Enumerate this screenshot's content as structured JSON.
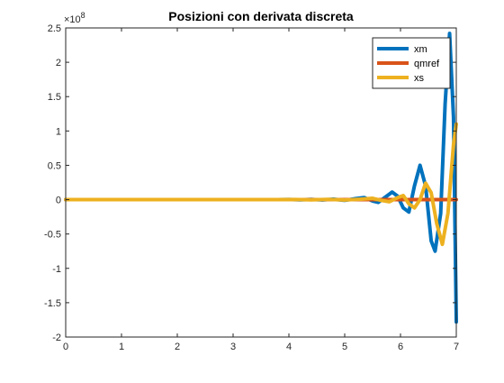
{
  "chart_data": {
    "type": "line",
    "title": "Posizioni con derivata discreta",
    "xlabel": "",
    "ylabel": "",
    "xlim": [
      0,
      7
    ],
    "ylim": [
      -2.0,
      2.5
    ],
    "y_exponent_label": "×10",
    "y_exponent_power": "8",
    "x_ticks": [
      0,
      1,
      2,
      3,
      4,
      5,
      6,
      7
    ],
    "x_tick_labels": [
      "0",
      "1",
      "2",
      "3",
      "4",
      "5",
      "6",
      "7"
    ],
    "y_ticks": [
      2.5,
      2,
      1.5,
      1,
      0.5,
      0,
      -0.5,
      -1,
      -1.5,
      -2
    ],
    "y_tick_labels": [
      "2.5",
      "2",
      "1.5",
      "1",
      "0.5",
      "0",
      "-0.5",
      "-1",
      "-1.5",
      "-2"
    ],
    "grid": false,
    "legend_position": "top-right",
    "series": [
      {
        "name": "xm",
        "color": "#0072BD",
        "points": [
          [
            0,
            0
          ],
          [
            3.8,
            0
          ],
          [
            4.0,
            0.003
          ],
          [
            4.2,
            -0.003
          ],
          [
            4.4,
            0.004
          ],
          [
            4.6,
            -0.005
          ],
          [
            4.8,
            0.008
          ],
          [
            5.0,
            -0.01
          ],
          [
            5.2,
            0.015
          ],
          [
            5.35,
            0.03
          ],
          [
            5.5,
            -0.02
          ],
          [
            5.6,
            -0.04
          ],
          [
            5.75,
            0.05
          ],
          [
            5.85,
            0.11
          ],
          [
            5.95,
            0.05
          ],
          [
            6.05,
            -0.12
          ],
          [
            6.15,
            -0.18
          ],
          [
            6.25,
            0.2
          ],
          [
            6.35,
            0.5
          ],
          [
            6.45,
            0.2
          ],
          [
            6.55,
            -0.6
          ],
          [
            6.62,
            -0.75
          ],
          [
            6.72,
            -0.2
          ],
          [
            6.8,
            1.4
          ],
          [
            6.88,
            2.42
          ],
          [
            6.95,
            1.2
          ],
          [
            7.0,
            -1.78
          ]
        ]
      },
      {
        "name": "qmref",
        "color": "#D95319",
        "points": [
          [
            0,
            0
          ],
          [
            7.0,
            0
          ]
        ]
      },
      {
        "name": "xs",
        "color": "#EDB120",
        "points": [
          [
            0,
            0
          ],
          [
            3.8,
            0
          ],
          [
            4.1,
            0.002
          ],
          [
            4.4,
            -0.002
          ],
          [
            4.7,
            0.004
          ],
          [
            5.0,
            -0.005
          ],
          [
            5.3,
            0.008
          ],
          [
            5.5,
            0.02
          ],
          [
            5.65,
            -0.01
          ],
          [
            5.8,
            -0.03
          ],
          [
            5.95,
            0.03
          ],
          [
            6.05,
            0.06
          ],
          [
            6.15,
            -0.06
          ],
          [
            6.25,
            -0.12
          ],
          [
            6.35,
            0.0
          ],
          [
            6.45,
            0.24
          ],
          [
            6.55,
            0.1
          ],
          [
            6.65,
            -0.35
          ],
          [
            6.75,
            -0.65
          ],
          [
            6.85,
            -0.2
          ],
          [
            6.95,
            0.8
          ],
          [
            7.0,
            1.1
          ]
        ]
      }
    ]
  }
}
